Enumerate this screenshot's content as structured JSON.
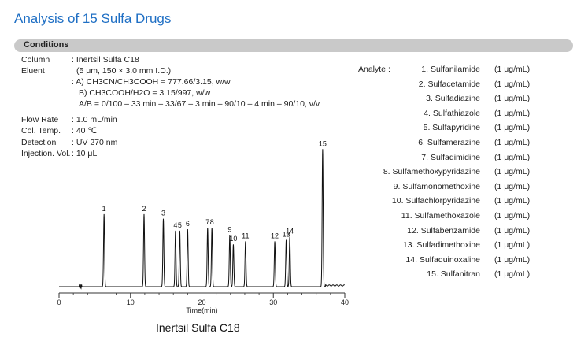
{
  "title": "Analysis of 15 Sulfa Drugs",
  "conditions_header": "Conditions",
  "conditions": {
    "column_label": "Column",
    "column_value": ": Inertsil Sulfa C18",
    "column_detail": "(5 μm, 150 × 3.0 mm I.D.)",
    "eluent_label": "Eluent",
    "eluent_a": ": A) CH3CN/CH3COOH = 777.66/3.15, w/w",
    "eluent_b": "B) CH3COOH/H2O = 3.15/997, w/w",
    "gradient": "A/B = 0/100 – 33 min – 33/67 – 3 min – 90/10 – 4 min – 90/10, v/v",
    "flow_label": "Flow Rate",
    "flow_value": ": 1.0 mL/min",
    "temp_label": "Col. Temp.",
    "temp_value": ": 40 ℃",
    "detection_label": "Detection",
    "detection_value": ": UV 270 nm",
    "injection_label": "Injection. Vol.",
    "injection_value": ": 10 μL"
  },
  "analyte_label": "Analyte :",
  "analytes": [
    {
      "name": "1. Sulfanilamide",
      "conc": "(1 μg/mL)"
    },
    {
      "name": "2. Sulfacetamide",
      "conc": "(1 μg/mL)"
    },
    {
      "name": "3. Sulfadiazine",
      "conc": "(1 μg/mL)"
    },
    {
      "name": "4. Sulfathiazole",
      "conc": "(1 μg/mL)"
    },
    {
      "name": "5. Sulfapyridine",
      "conc": "(1 μg/mL)"
    },
    {
      "name": "6. Sulfamerazine",
      "conc": "(1 μg/mL)"
    },
    {
      "name": "7. Sulfadimidine",
      "conc": "(1 μg/mL)"
    },
    {
      "name": "8. Sulfamethoxypyridazine",
      "conc": "(1 μg/mL)"
    },
    {
      "name": "9. Sulfamonomethoxine",
      "conc": "(1 μg/mL)"
    },
    {
      "name": "10. Sulfachlorpyridazine",
      "conc": "(1 μg/mL)"
    },
    {
      "name": "11. Sulfamethoxazole",
      "conc": "(1 μg/mL)"
    },
    {
      "name": "12. Sulfabenzamide",
      "conc": "(1 μg/mL)"
    },
    {
      "name": "13. Sulfadimethoxine",
      "conc": "(1 μg/mL)"
    },
    {
      "name": "14. Sulfaquinoxaline",
      "conc": "(1 μg/mL)"
    },
    {
      "name": "15. Sulfanitran",
      "conc": "(1 μg/mL)"
    }
  ],
  "chart_data": {
    "type": "line",
    "xlabel": "Time(min)",
    "xlim": [
      0,
      40
    ],
    "xticks": [
      0,
      10,
      20,
      30,
      40
    ],
    "ylabel": "",
    "peaks": [
      {
        "label": "1",
        "time": 6.3,
        "height": 0.48
      },
      {
        "label": "2",
        "time": 11.9,
        "height": 0.48
      },
      {
        "label": "3",
        "time": 14.6,
        "height": 0.45
      },
      {
        "label": "4",
        "time": 16.3,
        "height": 0.37
      },
      {
        "label": "5",
        "time": 16.9,
        "height": 0.37
      },
      {
        "label": "6",
        "time": 18.0,
        "height": 0.38
      },
      {
        "label": "7",
        "time": 20.8,
        "height": 0.39
      },
      {
        "label": "8",
        "time": 21.4,
        "height": 0.39
      },
      {
        "label": "9",
        "time": 23.9,
        "height": 0.34
      },
      {
        "label": "10",
        "time": 24.4,
        "height": 0.28
      },
      {
        "label": "11",
        "time": 26.1,
        "height": 0.3
      },
      {
        "label": "12",
        "time": 30.2,
        "height": 0.3
      },
      {
        "label": "13",
        "time": 31.8,
        "height": 0.31
      },
      {
        "label": "14",
        "time": 32.3,
        "height": 0.33
      },
      {
        "label": "15",
        "time": 36.9,
        "height": 0.91
      }
    ]
  },
  "chromatogram_caption": "Inertsil Sulfa C18"
}
